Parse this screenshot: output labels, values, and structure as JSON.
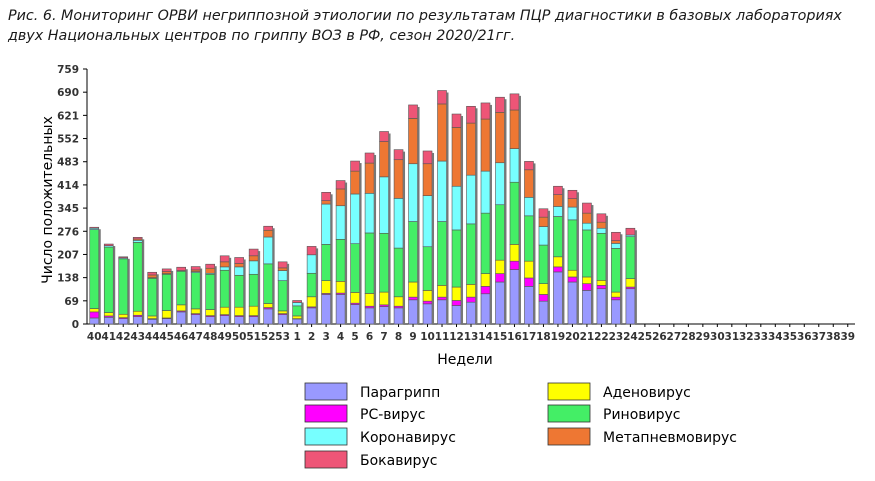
{
  "title": "Рис. 6. Мониторинг ОРВИ негриппозной этиологии по результатам ПЦР диагностики в базовых лабораториях двух Национальных центров по гриппу ВОЗ в РФ, сезон 2020/21гг.",
  "chart_data": {
    "type": "bar",
    "stacked": true,
    "xlabel": "Недели",
    "ylabel": "Число положительных",
    "ylim": [
      0,
      759
    ],
    "yticks": [
      0,
      69,
      138,
      207,
      276,
      345,
      414,
      483,
      552,
      621,
      690,
      759
    ],
    "grid": false,
    "legend_position": "bottom",
    "categories": [
      "40",
      "41",
      "42",
      "43",
      "44",
      "45",
      "46",
      "47",
      "48",
      "49",
      "50",
      "51",
      "52",
      "53",
      "1",
      "2",
      "3",
      "4",
      "5",
      "6",
      "7",
      "8",
      "9",
      "10",
      "11",
      "12",
      "13",
      "14",
      "15",
      "16",
      "17",
      "18",
      "19",
      "20",
      "21",
      "22",
      "23",
      "24",
      "25",
      "26",
      "27",
      "28",
      "29",
      "30",
      "31",
      "32",
      "33",
      "34",
      "35",
      "36",
      "37",
      "38",
      "39"
    ],
    "series": [
      {
        "name": "Парагрипп",
        "color": "#9999ff",
        "values": [
          18,
          20,
          16,
          22,
          14,
          16,
          36,
          28,
          22,
          25,
          22,
          22,
          45,
          28,
          15,
          48,
          88,
          88,
          58,
          48,
          52,
          48,
          72,
          60,
          72,
          55,
          65,
          90,
          125,
          162,
          112,
          68,
          155,
          125,
          100,
          105,
          72,
          105,
          0,
          0,
          0,
          0,
          0,
          0,
          0,
          0,
          0,
          0,
          0,
          0,
          0,
          0,
          0
        ]
      },
      {
        "name": "РС-вирус",
        "color": "#ff00ff",
        "values": [
          18,
          4,
          3,
          4,
          2,
          2,
          3,
          3,
          3,
          3,
          3,
          3,
          4,
          3,
          1,
          3,
          3,
          4,
          4,
          5,
          5,
          5,
          8,
          8,
          8,
          15,
          15,
          22,
          25,
          25,
          25,
          20,
          15,
          15,
          20,
          10,
          8,
          5,
          0,
          0,
          0,
          0,
          0,
          0,
          0,
          0,
          0,
          0,
          0,
          0,
          0,
          0,
          0
        ]
      },
      {
        "name": "Аденовирус",
        "color": "#ffff00",
        "values": [
          10,
          10,
          10,
          12,
          8,
          22,
          18,
          14,
          18,
          22,
          25,
          28,
          12,
          8,
          8,
          30,
          38,
          35,
          32,
          38,
          38,
          28,
          45,
          32,
          35,
          40,
          38,
          38,
          40,
          50,
          50,
          32,
          30,
          20,
          20,
          15,
          15,
          25,
          0,
          0,
          0,
          0,
          0,
          0,
          0,
          0,
          0,
          0,
          0,
          0,
          0,
          0,
          0
        ]
      },
      {
        "name": "Риновирус",
        "color": "#44ee66",
        "values": [
          235,
          195,
          165,
          205,
          112,
          108,
          100,
          108,
          105,
          110,
          95,
          95,
          118,
          90,
          30,
          70,
          108,
          125,
          145,
          180,
          175,
          145,
          180,
          130,
          190,
          170,
          180,
          180,
          165,
          185,
          135,
          115,
          120,
          150,
          140,
          140,
          130,
          125,
          0,
          0,
          0,
          0,
          0,
          0,
          0,
          0,
          0,
          0,
          0,
          0,
          0,
          0,
          0
        ]
      },
      {
        "name": "Коронавирус",
        "color": "#77ffff",
        "values": [
          4,
          4,
          3,
          6,
          2,
          2,
          2,
          3,
          3,
          10,
          25,
          40,
          80,
          30,
          10,
          55,
          120,
          100,
          148,
          118,
          168,
          148,
          172,
          152,
          180,
          130,
          145,
          125,
          125,
          100,
          55,
          55,
          30,
          38,
          20,
          15,
          15,
          5,
          0,
          0,
          0,
          0,
          0,
          0,
          0,
          0,
          0,
          0,
          0,
          0,
          0,
          0,
          0
        ]
      },
      {
        "name": "Метапневмовирус",
        "color": "#ee7733",
        "values": [
          0,
          0,
          0,
          4,
          8,
          6,
          0,
          5,
          15,
          15,
          10,
          15,
          20,
          8,
          0,
          0,
          10,
          50,
          68,
          90,
          105,
          115,
          135,
          95,
          170,
          175,
          155,
          155,
          150,
          115,
          82,
          28,
          35,
          25,
          30,
          18,
          8,
          0,
          0,
          0,
          0,
          0,
          0,
          0,
          0,
          0,
          0,
          0,
          0,
          0,
          0,
          0,
          0
        ]
      },
      {
        "name": "Бокавирус",
        "color": "#ee5577",
        "values": [
          3,
          5,
          3,
          5,
          8,
          8,
          10,
          10,
          12,
          18,
          18,
          20,
          12,
          18,
          6,
          25,
          25,
          25,
          30,
          30,
          30,
          30,
          40,
          38,
          40,
          40,
          50,
          48,
          45,
          48,
          25,
          25,
          25,
          25,
          30,
          25,
          25,
          20,
          0,
          0,
          0,
          0,
          0,
          0,
          0,
          0,
          0,
          0,
          0,
          0,
          0,
          0,
          0
        ]
      }
    ],
    "legend_order": [
      "Парагрипп",
      "Аденовирус",
      "РС-вирус",
      "Риновирус",
      "Коронавирус",
      "Метапневмовирус",
      "Бокавирус"
    ]
  }
}
